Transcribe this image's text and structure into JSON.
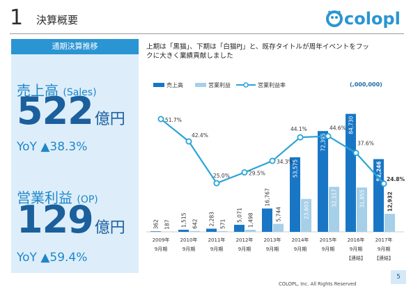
{
  "header": {
    "page_num": "1",
    "title": "決算概要",
    "logo_text": "colopl"
  },
  "panel": {
    "header": "通期決算推移",
    "sales": {
      "title": "売上高",
      "title_en": "(Sales)",
      "value": "522",
      "unit": "億円",
      "yoy": "YoY ▲38.3%"
    },
    "op": {
      "title": "営業利益",
      "title_en": "(OP)",
      "value": "129",
      "unit": "億円",
      "yoy": "YoY ▲59.4%"
    }
  },
  "commentary": {
    "line1": "上期は「黒猫」、下期は「白猫PJ」と、既存タイトルが周年イベントをフッ",
    "line2": "クに大きく業績貢献しました"
  },
  "chart_data": {
    "type": "bar",
    "unit": "(,000,000)",
    "categories": [
      "2009年9月期",
      "2010年9月期",
      "2011年9月期",
      "2012年9月期",
      "2013年9月期",
      "2014年9月期",
      "2015年9月期",
      "2016年9月期",
      "2017年9月期"
    ],
    "category_lines": [
      [
        "2009年",
        "9月期",
        ""
      ],
      [
        "2010年",
        "9月期",
        ""
      ],
      [
        "2011年",
        "9月期",
        ""
      ],
      [
        "2012年",
        "9月期",
        ""
      ],
      [
        "2013年",
        "9月期",
        ""
      ],
      [
        "2014年",
        "9月期",
        ""
      ],
      [
        "2015年",
        "9月期",
        ""
      ],
      [
        "2016年",
        "9月期",
        "【連結】"
      ],
      [
        "2017年",
        "9月期",
        "【連結】"
      ]
    ],
    "series": [
      {
        "name": "売上高",
        "values": [
          362,
          1515,
          2283,
          5071,
          16767,
          53575,
          72395,
          84730,
          52246
        ],
        "labels": [
          "362",
          "1,515",
          "2,283",
          "5,071",
          "16,767",
          "53,575",
          "72,395",
          "84,730",
          "52,246"
        ],
        "color": "#1976c5"
      },
      {
        "name": "営業利益",
        "values": [
          187,
          642,
          571,
          1498,
          5744,
          23603,
          32317,
          31855,
          12932
        ],
        "labels": [
          "187",
          "642",
          "571",
          "1,498",
          "5,744",
          "23,603",
          "32,317",
          "31,855",
          "12,932"
        ],
        "color": "#a6cfe8"
      },
      {
        "name": "営業利益率",
        "values": [
          51.7,
          42.4,
          25.0,
          29.5,
          34.3,
          44.1,
          44.6,
          37.6,
          24.8
        ],
        "labels": [
          "51.7%",
          "42.4%",
          "25.0%",
          "29.5%",
          "34.3%",
          "44.1%",
          "44.6%",
          "37.6%",
          "24.8%"
        ],
        "color": "#2aa4d8"
      }
    ],
    "ylim": [
      0,
      90000
    ],
    "y2lim": [
      0,
      70
    ],
    "grid": false,
    "legend": "top-left"
  },
  "footer": {
    "copyright": "COLOPL, Inc. All Rights Reserved",
    "page": "5"
  }
}
